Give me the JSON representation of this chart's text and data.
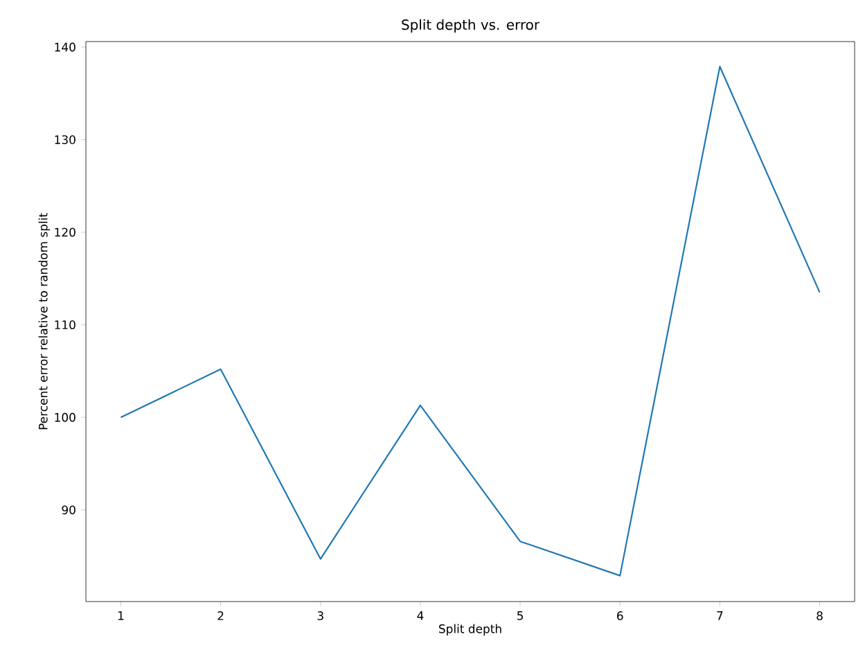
{
  "chart_data": {
    "type": "line",
    "title": "Split depth vs. error",
    "xlabel": "Split depth",
    "ylabel": "Percent error relative to random split",
    "x": [
      1,
      2,
      3,
      4,
      5,
      6,
      7,
      8
    ],
    "series": [
      {
        "color": "#1f77b4",
        "values": [
          100,
          105.2,
          84.7,
          101.3,
          86.6,
          82.9,
          137.9,
          113.5
        ]
      }
    ],
    "xlim": [
      0.65,
      8.35
    ],
    "ylim": [
      80.1,
      140.6
    ],
    "xticks": [
      1,
      2,
      3,
      4,
      5,
      6,
      7,
      8
    ],
    "yticks": [
      90,
      100,
      110,
      120,
      130,
      140
    ],
    "grid": false
  }
}
